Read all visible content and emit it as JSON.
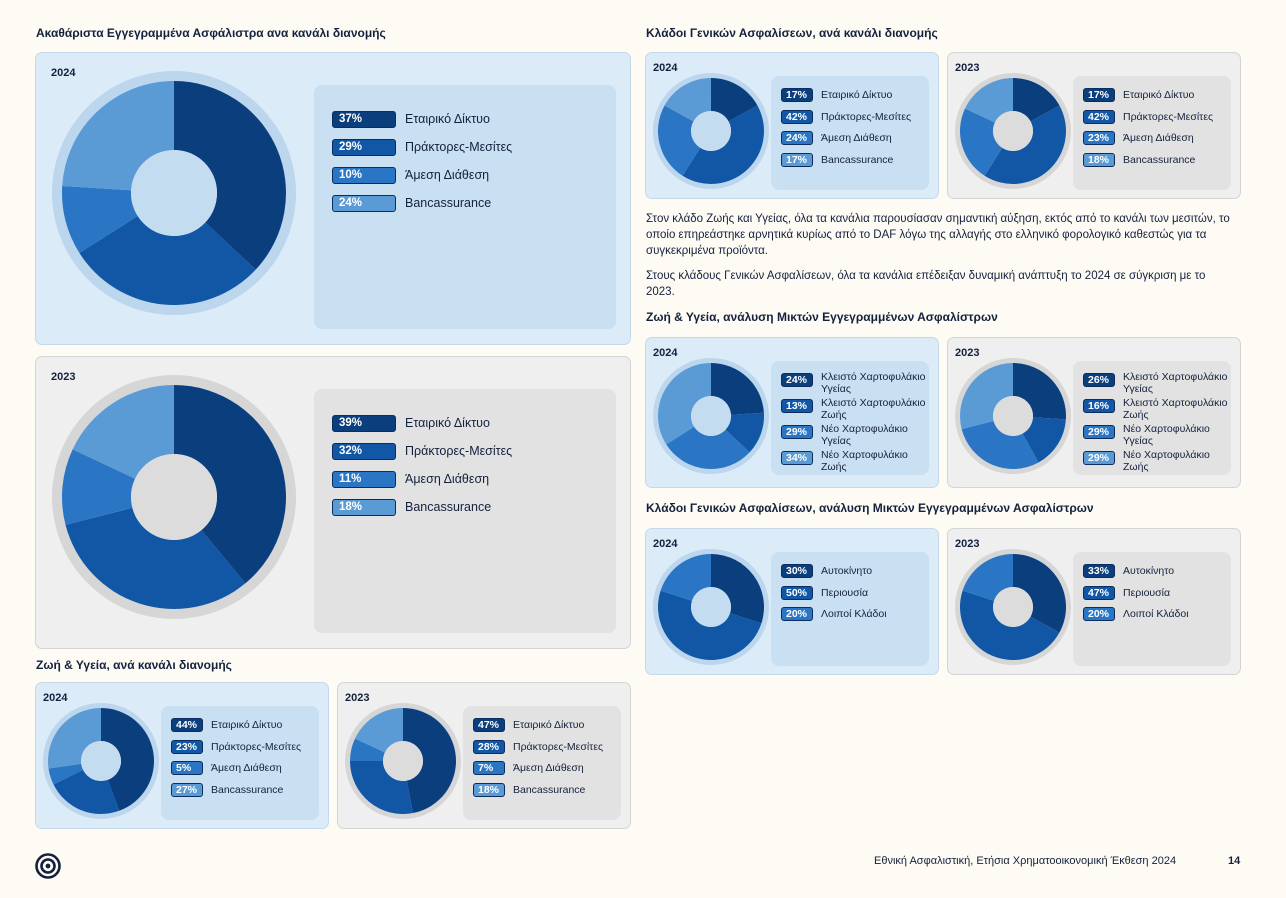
{
  "colors": {
    "series": [
      "#0b3e7d",
      "#1157a6",
      "#2a76c4",
      "#5b9bd5"
    ],
    "ring_blue": "#bcd6ee",
    "ring_grey": "#d6d6d6",
    "hole_blue": "#c4dcf0",
    "hole_grey": "#dcdcdc"
  },
  "titles": {
    "gross_premiums": "Ακαθάριστα Εγγεγραμμένα Ασφάλιστρα ανα κανάλι διανομής",
    "life_health": "Ζωή & Υγεία, ανά κανάλι διανομής",
    "general_channel": "Κλάδοι Γενικών Ασφαλίσεων, ανά κανάλι διανομής",
    "life_mixed": "Ζωή & Υγεία, ανάλυση Μικτών Εγγεγραμμένων Ασφαλίστρων",
    "general_mixed": "Κλάδοι Γενικών Ασφαλίσεων, ανάλυση Μικτών Εγγεγραμμένων Ασφαλίστρων"
  },
  "paragraphs": {
    "p1": "Στον κλάδο Ζωής και Υγείας, όλα τα κανάλια παρουσίασαν σημαντική αύξηση, εκτός από το κανάλι των μεσιτών, το οποίο επηρεάστηκε αρνητικά κυρίως από το DAF λόγω της αλλαγής στο ελληνικό φορολογικό καθεστώς για τα συγκεκριμένα προϊόντα.",
    "p2": "Στους κλάδους Γενικών Ασφαλίσεων, όλα τα κανάλια επέδειξαν δυναμική ανάπτυξη το 2024 σε σύγκριση με το 2023."
  },
  "footer": {
    "text": "Εθνική Ασφαλιστική, Ετήσια Χρηματοοικονομική Έκθεση 2024",
    "page": "14"
  },
  "chart_data": [
    {
      "id": "gross_2024",
      "type": "pie",
      "title": "2024",
      "categories": [
        "Εταιρικό Δίκτυο",
        "Πράκτορες-Μεσίτες",
        "Άμεση Διάθεση",
        "Bancassurance"
      ],
      "values": [
        37,
        29,
        10,
        24
      ],
      "labels": [
        "37%",
        "29%",
        "10%",
        "24%"
      ]
    },
    {
      "id": "gross_2023",
      "type": "pie",
      "title": "2023",
      "categories": [
        "Εταιρικό Δίκτυο",
        "Πράκτορες-Μεσίτες",
        "Άμεση Διάθεση",
        "Bancassurance"
      ],
      "values": [
        39,
        32,
        11,
        18
      ],
      "labels": [
        "39%",
        "32%",
        "11%",
        "18%"
      ]
    },
    {
      "id": "life_2024",
      "type": "pie",
      "title": "2024",
      "categories": [
        "Εταιρικό Δίκτυο",
        "Πράκτορες-Μεσίτες",
        "Άμεση Διάθεση",
        "Bancassurance"
      ],
      "values": [
        44,
        23,
        5,
        27
      ],
      "labels": [
        "44%",
        "23%",
        "5%",
        "27%"
      ]
    },
    {
      "id": "life_2023",
      "type": "pie",
      "title": "2023",
      "categories": [
        "Εταιρικό Δίκτυο",
        "Πράκτορες-Μεσίτες",
        "Άμεση Διάθεση",
        "Bancassurance"
      ],
      "values": [
        47,
        28,
        7,
        18
      ],
      "labels": [
        "47%",
        "28%",
        "7%",
        "18%"
      ]
    },
    {
      "id": "gen_2024",
      "type": "pie",
      "title": "2024",
      "categories": [
        "Εταιρικό Δίκτυο",
        "Πράκτορες-Μεσίτες",
        "Άμεση Διάθεση",
        "Bancassurance"
      ],
      "values": [
        17,
        42,
        24,
        17
      ],
      "labels": [
        "17%",
        "42%",
        "24%",
        "17%"
      ]
    },
    {
      "id": "gen_2023",
      "type": "pie",
      "title": "2023",
      "categories": [
        "Εταιρικό Δίκτυο",
        "Πράκτορες-Μεσίτες",
        "Άμεση Διάθεση",
        "Bancassurance"
      ],
      "values": [
        17,
        42,
        23,
        18
      ],
      "labels": [
        "17%",
        "42%",
        "23%",
        "18%"
      ]
    },
    {
      "id": "lifemix_2024",
      "type": "pie",
      "title": "2024",
      "categories": [
        "Κλειστό Χαρτοφυλάκιο Υγείας",
        "Κλειστό Χαρτοφυλάκιο  Ζωής",
        "Νέο Χαρτοφυλάκιο Υγείας",
        "Νέο Χαρτοφυλάκιο Ζωής"
      ],
      "values": [
        24,
        13,
        29,
        34
      ],
      "labels": [
        "24%",
        "13%",
        "29%",
        "34%"
      ]
    },
    {
      "id": "lifemix_2023",
      "type": "pie",
      "title": "2023",
      "categories": [
        "Κλειστό Χαρτοφυλάκιο Υγείας",
        "Κλειστό Χαρτοφυλάκιο  Ζωής",
        "Νέο Χαρτοφυλάκιο Υγείας",
        "Νέο Χαρτοφυλάκιο Ζωής"
      ],
      "values": [
        26,
        16,
        29,
        29
      ],
      "labels": [
        "26%",
        "16%",
        "29%",
        "29%"
      ]
    },
    {
      "id": "genmix_2024",
      "type": "pie",
      "title": "2024",
      "categories": [
        "Αυτοκίνητο",
        "Περιουσία",
        "Λοιποί Κλάδοι"
      ],
      "values": [
        30,
        50,
        20
      ],
      "labels": [
        "30%",
        "50%",
        "20%"
      ]
    },
    {
      "id": "genmix_2023",
      "type": "pie",
      "title": "2023",
      "categories": [
        "Αυτοκίνητο",
        "Περιουσία",
        "Λοιποί Κλάδοι"
      ],
      "values": [
        33,
        47,
        20
      ],
      "labels": [
        "33%",
        "47%",
        "20%"
      ]
    }
  ]
}
